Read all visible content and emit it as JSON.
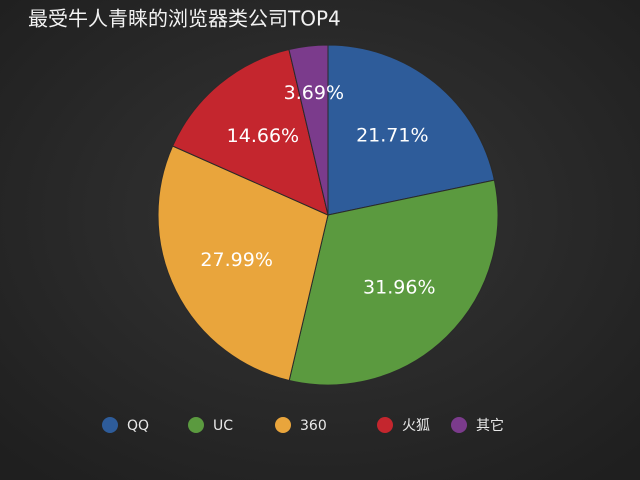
{
  "chart_data": {
    "type": "pie",
    "title": "最受牛人青睐的浏览器类公司TOP4",
    "categories": [
      "QQ",
      "UC",
      "360",
      "火狐",
      "其它"
    ],
    "values": [
      21.71,
      31.96,
      27.99,
      14.66,
      3.69
    ],
    "value_labels": [
      "21.71%",
      "31.96%",
      "27.99%",
      "14.66%",
      "3.69%"
    ],
    "colors": [
      "#2e5c9a",
      "#5b9a3f",
      "#e9a53c",
      "#c4262e",
      "#7b3b8c"
    ],
    "legend": "bottom"
  }
}
